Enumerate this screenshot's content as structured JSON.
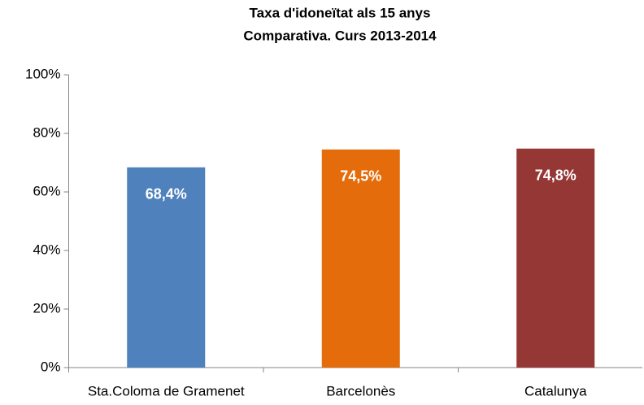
{
  "chart_data": {
    "type": "bar",
    "title": "Taxa d'idoneïtat als 15 anys",
    "subtitle": "Comparativa. Curs 2013-2014",
    "categories": [
      "Sta.Coloma de Gramenet",
      "Barcelonès",
      "Catalunya"
    ],
    "values": [
      68.4,
      74.5,
      74.8
    ],
    "value_labels": [
      "68,4%",
      "74,5%",
      "74,8%"
    ],
    "colors": [
      "#4f81bd",
      "#e46c0a",
      "#953735"
    ],
    "ylim": [
      0,
      100
    ],
    "yticks": [
      {
        "value": 0,
        "label": "0%"
      },
      {
        "value": 20,
        "label": "20%"
      },
      {
        "value": 40,
        "label": "40%"
      },
      {
        "value": 60,
        "label": "60%"
      },
      {
        "value": 80,
        "label": "80%"
      },
      {
        "value": 100,
        "label": "100%"
      }
    ],
    "grid": false
  }
}
